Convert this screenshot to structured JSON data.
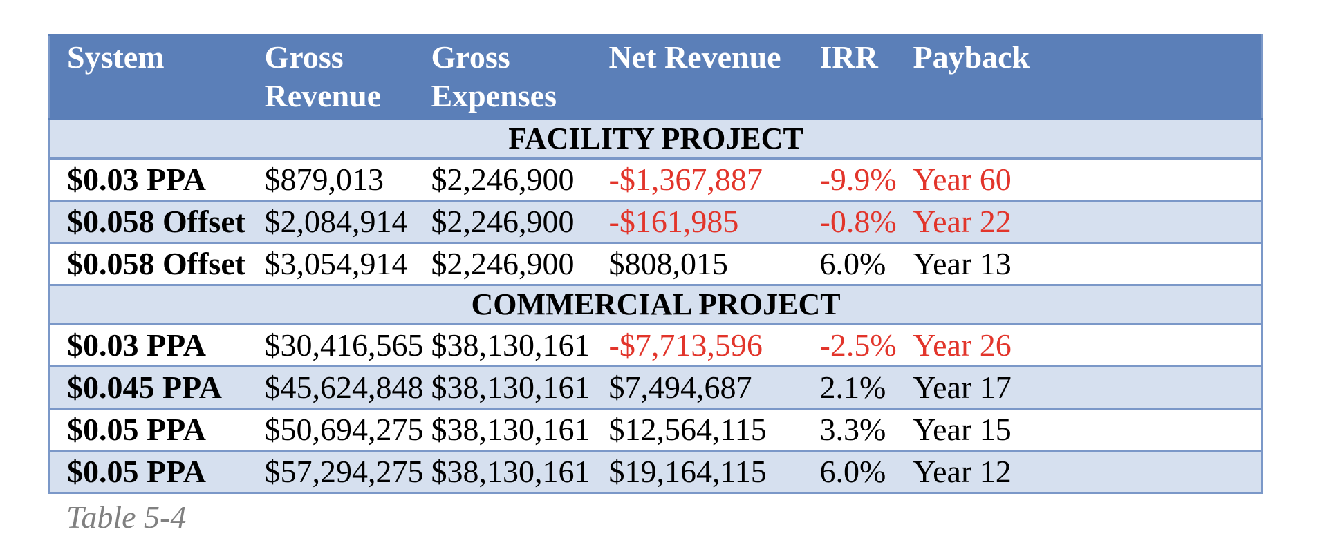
{
  "table": {
    "headers": [
      "System",
      "Gross Revenue",
      "Gross Expenses",
      "Net Revenue",
      "IRR",
      "Payback"
    ],
    "header_lines": [
      [
        "System"
      ],
      [
        "Gross",
        "Revenue"
      ],
      [
        "Gross",
        "Expenses"
      ],
      [
        "Net Revenue"
      ],
      [
        "IRR"
      ],
      [
        "Payback"
      ]
    ],
    "sections": [
      {
        "title": "FACILITY PROJECT",
        "rows": [
          {
            "system": "$0.03 PPA",
            "gross_revenue": "$879,013",
            "gross_expenses": "$2,246,900",
            "net_revenue": "-$1,367,887",
            "irr": "-9.9%",
            "payback": "Year 60",
            "negative": true
          },
          {
            "system": "$0.058 Offset",
            "gross_revenue": "$2,084,914",
            "gross_expenses": "$2,246,900",
            "net_revenue": "-$161,985",
            "irr": "-0.8%",
            "payback": "Year 22",
            "negative": true
          },
          {
            "system": "$0.058 Offset",
            "gross_revenue": "$3,054,914",
            "gross_expenses": "$2,246,900",
            "net_revenue": "$808,015",
            "irr": "6.0%",
            "payback": "Year 13",
            "negative": false
          }
        ]
      },
      {
        "title": "COMMERCIAL PROJECT",
        "rows": [
          {
            "system": "$0.03 PPA",
            "gross_revenue": "$30,416,565",
            "gross_expenses": "$38,130,161",
            "net_revenue": "-$7,713,596",
            "irr": "-2.5%",
            "payback": "Year 26",
            "negative": true
          },
          {
            "system": "$0.045 PPA",
            "gross_revenue": "$45,624,848",
            "gross_expenses": "$38,130,161",
            "net_revenue": "$7,494,687",
            "irr": "2.1%",
            "payback": "Year 17",
            "negative": false
          },
          {
            "system": "$0.05 PPA",
            "gross_revenue": "$50,694,275",
            "gross_expenses": "$38,130,161",
            "net_revenue": "$12,564,115",
            "irr": "3.3%",
            "payback": "Year 15",
            "negative": false
          },
          {
            "system": "$0.05 PPA",
            "gross_revenue": "$57,294,275",
            "gross_expenses": "$38,130,161",
            "net_revenue": "$19,164,115",
            "irr": "6.0%",
            "payback": "Year 12",
            "negative": false
          }
        ]
      }
    ]
  },
  "caption": "Table 5-4",
  "colors": {
    "header_bg": "#5b7fb8",
    "shaded_row_bg": "#d6e0ef",
    "border": "#7b98c8",
    "negative_text": "#e2352b",
    "caption_text": "#808080"
  }
}
